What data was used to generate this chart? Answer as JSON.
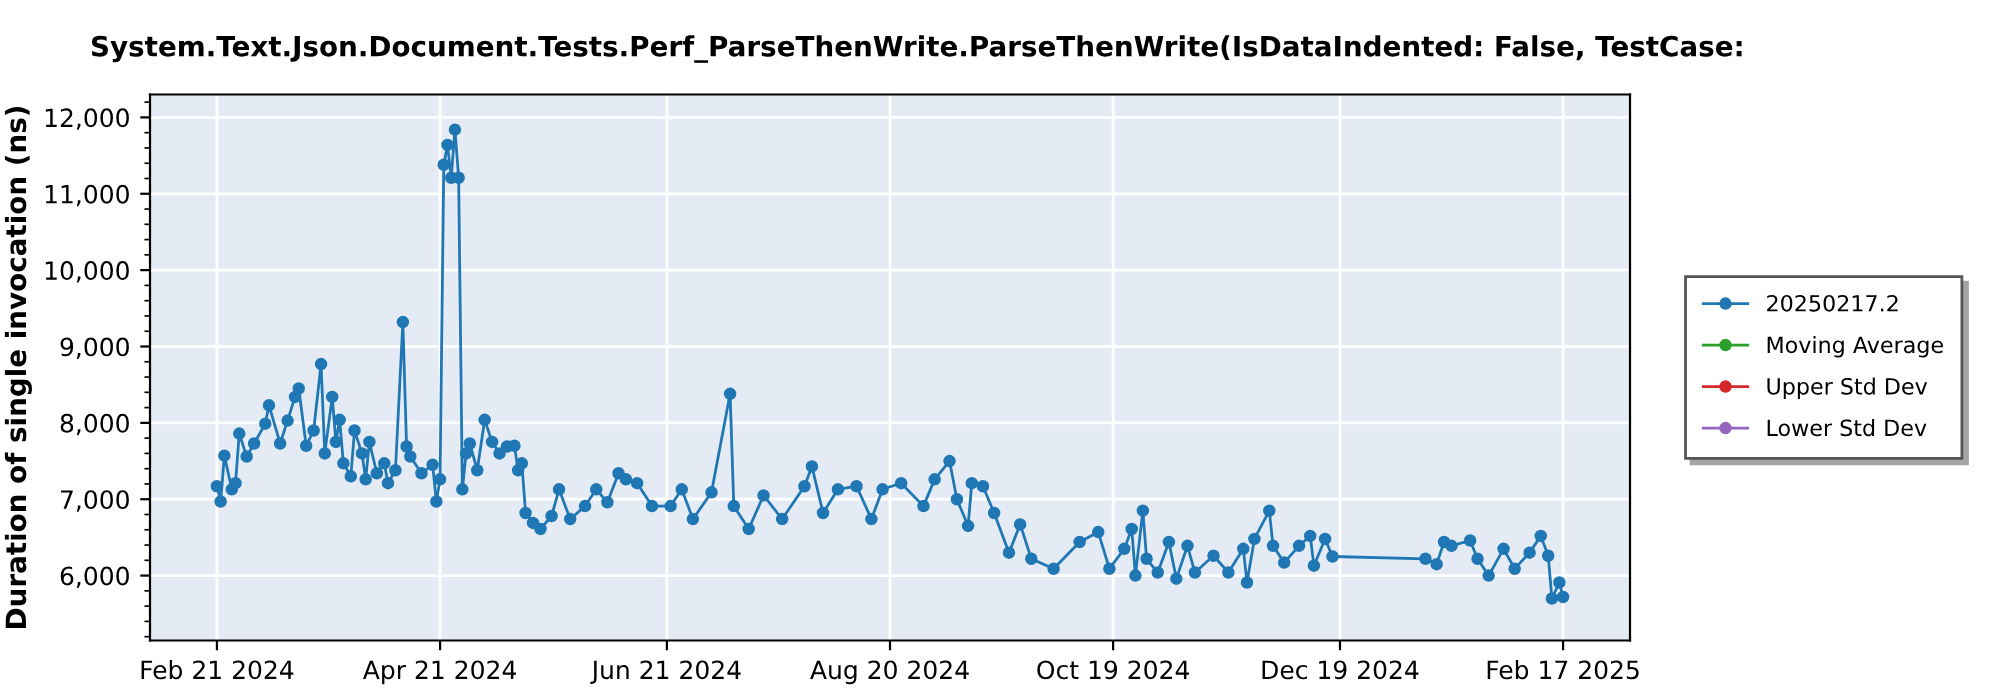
{
  "chart_data": {
    "type": "line",
    "title": "System.Text.Json.Document.Tests.Perf_ParseThenWrite.ParseThenWrite(IsDataIndented: False, TestCase:",
    "ylabel": "Duration of single invocation (ns)",
    "xlim": [
      "2024-02-03",
      "2025-03-07"
    ],
    "xticks": [
      {
        "value": "2024-02-21",
        "label": "Feb 21 2024"
      },
      {
        "value": "2024-04-21",
        "label": "Apr 21 2024"
      },
      {
        "value": "2024-06-21",
        "label": "Jun 21 2024"
      },
      {
        "value": "2024-08-20",
        "label": "Aug 20 2024"
      },
      {
        "value": "2024-10-19",
        "label": "Oct 19 2024"
      },
      {
        "value": "2024-12-19",
        "label": "Dec 19 2024"
      },
      {
        "value": "2025-02-17",
        "label": "Feb 17 2025"
      }
    ],
    "ylim": [
      5150,
      12300
    ],
    "yticks": [
      {
        "value": 6000,
        "label": "6,000"
      },
      {
        "value": 7000,
        "label": "7,000"
      },
      {
        "value": 8000,
        "label": "8,000"
      },
      {
        "value": 9000,
        "label": "9,000"
      },
      {
        "value": 10000,
        "label": "10,000"
      },
      {
        "value": 11000,
        "label": "11,000"
      },
      {
        "value": 12000,
        "label": "12,000"
      }
    ],
    "grid": true,
    "legend": "right",
    "marker": "circle",
    "line_style": "solid",
    "series": [
      {
        "name": "20250217.2",
        "color": "#1f77b4",
        "x": [
          "2024-02-21",
          "2024-02-22",
          "2024-02-23",
          "2024-02-25",
          "2024-02-26",
          "2024-02-27",
          "2024-02-29",
          "2024-03-02",
          "2024-03-05",
          "2024-03-06",
          "2024-03-09",
          "2024-03-11",
          "2024-03-13",
          "2024-03-14",
          "2024-03-16",
          "2024-03-18",
          "2024-03-20",
          "2024-03-21",
          "2024-03-23",
          "2024-03-24",
          "2024-03-25",
          "2024-03-26",
          "2024-03-28",
          "2024-03-29",
          "2024-03-31",
          "2024-04-01",
          "2024-04-02",
          "2024-04-04",
          "2024-04-06",
          "2024-04-07",
          "2024-04-09",
          "2024-04-11",
          "2024-04-12",
          "2024-04-13",
          "2024-04-16",
          "2024-04-19",
          "2024-04-20",
          "2024-04-21",
          "2024-04-22",
          "2024-04-23",
          "2024-04-24",
          "2024-04-25",
          "2024-04-26",
          "2024-04-27",
          "2024-04-28",
          "2024-04-29",
          "2024-05-01",
          "2024-05-03",
          "2024-05-05",
          "2024-05-07",
          "2024-05-09",
          "2024-05-11",
          "2024-05-12",
          "2024-05-13",
          "2024-05-14",
          "2024-05-16",
          "2024-05-18",
          "2024-05-21",
          "2024-05-23",
          "2024-05-26",
          "2024-05-30",
          "2024-06-02",
          "2024-06-05",
          "2024-06-08",
          "2024-06-10",
          "2024-06-13",
          "2024-06-17",
          "2024-06-22",
          "2024-06-25",
          "2024-06-28",
          "2024-07-03",
          "2024-07-08",
          "2024-07-09",
          "2024-07-13",
          "2024-07-17",
          "2024-07-22",
          "2024-07-28",
          "2024-07-30",
          "2024-08-02",
          "2024-08-06",
          "2024-08-11",
          "2024-08-15",
          "2024-08-18",
          "2024-08-23",
          "2024-08-29",
          "2024-09-01",
          "2024-09-05",
          "2024-09-07",
          "2024-09-10",
          "2024-09-11",
          "2024-09-14",
          "2024-09-17",
          "2024-09-21",
          "2024-09-24",
          "2024-09-27",
          "2024-10-03",
          "2024-10-10",
          "2024-10-15",
          "2024-10-18",
          "2024-10-22",
          "2024-10-24",
          "2024-10-25",
          "2024-10-27",
          "2024-10-28",
          "2024-10-31",
          "2024-11-03",
          "2024-11-05",
          "2024-11-08",
          "2024-11-10",
          "2024-11-15",
          "2024-11-19",
          "2024-11-23",
          "2024-11-24",
          "2024-11-26",
          "2024-11-30",
          "2024-12-01",
          "2024-12-04",
          "2024-12-08",
          "2024-12-11",
          "2024-12-12",
          "2024-12-15",
          "2024-12-17",
          "2025-01-11",
          "2025-01-14",
          "2025-01-16",
          "2025-01-18",
          "2025-01-23",
          "2025-01-25",
          "2025-01-28",
          "2025-02-01",
          "2025-02-04",
          "2025-02-08",
          "2025-02-11",
          "2025-02-13",
          "2025-02-14",
          "2025-02-16",
          "2025-02-17"
        ],
        "values": [
          7170,
          6970,
          7570,
          7130,
          7210,
          7860,
          7560,
          7730,
          7990,
          8230,
          7730,
          8030,
          8340,
          8450,
          7700,
          7900,
          8770,
          7600,
          8340,
          7750,
          8040,
          7470,
          7300,
          7900,
          7600,
          7260,
          7750,
          7340,
          7470,
          7210,
          7380,
          9320,
          7690,
          7560,
          7340,
          7450,
          6970,
          7260,
          11380,
          11640,
          11210,
          11840,
          11210,
          7130,
          7600,
          7730,
          7380,
          8040,
          7750,
          7600,
          7690,
          7700,
          7380,
          7470,
          6820,
          6690,
          6610,
          6780,
          7130,
          6740,
          6910,
          7130,
          6960,
          7340,
          7260,
          7210,
          6910,
          6910,
          7130,
          6740,
          7090,
          8380,
          6910,
          6610,
          7050,
          6740,
          7170,
          7430,
          6820,
          7130,
          7170,
          6740,
          7130,
          7210,
          6910,
          7260,
          7500,
          7000,
          6650,
          7210,
          7170,
          6820,
          6300,
          6670,
          6220,
          6090,
          6440,
          6570,
          6090,
          6350,
          6610,
          6000,
          6850,
          6220,
          6040,
          6440,
          5960,
          6390,
          6040,
          6260,
          6040,
          6350,
          5910,
          6480,
          6850,
          6390,
          6170,
          6390,
          6520,
          6130,
          6480,
          6250,
          6220,
          6150,
          6440,
          6390,
          6460,
          6220,
          6000,
          6350,
          6090,
          6300,
          6520,
          6260,
          5700,
          5910,
          5720
        ]
      },
      {
        "name": "Moving Average",
        "color": "#2ca02c"
      },
      {
        "name": "Upper Std Dev",
        "color": "#d62728"
      },
      {
        "name": "Lower Std Dev",
        "color": "#9467bd"
      }
    ]
  }
}
